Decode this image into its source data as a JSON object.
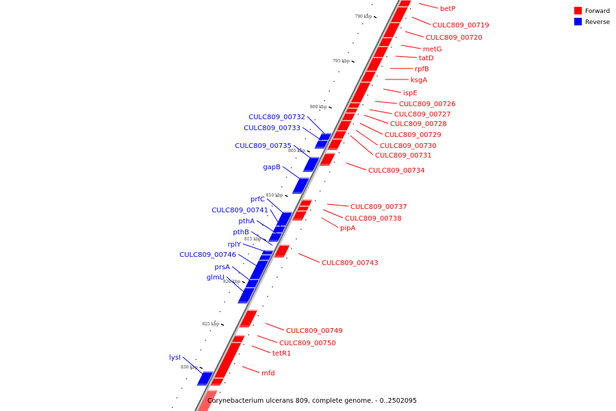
{
  "legend": {
    "forward_label": "Forward",
    "reverse_label": "Reverse",
    "forward_color": "#ff0000",
    "reverse_color": "#0000ff"
  },
  "caption": "Corynebacterium ulcerans 809, complete genome. - 0..2502095",
  "ticks": [
    "790 kbp",
    "795 kbp",
    "800 kbp",
    "805 kbp",
    "810 kbp",
    "815 kbp",
    "820 kbp",
    "825 kbp",
    "830 kbp"
  ],
  "genes_forward": [
    {
      "name": "betP"
    },
    {
      "name": "CULC809_00719"
    },
    {
      "name": "CULC809_00720"
    },
    {
      "name": "metG"
    },
    {
      "name": "tatD"
    },
    {
      "name": "rpfB"
    },
    {
      "name": "ksgA"
    },
    {
      "name": "ispE"
    },
    {
      "name": "CULC809_00726"
    },
    {
      "name": "CULC809_00727"
    },
    {
      "name": "CULC809_00728"
    },
    {
      "name": "CULC809_00729"
    },
    {
      "name": "CULC809_00730"
    },
    {
      "name": "CULC809_00731"
    },
    {
      "name": "CULC809_00734"
    },
    {
      "name": "CULC809_00737"
    },
    {
      "name": "CULC809_00738"
    },
    {
      "name": "pipA"
    },
    {
      "name": "CULC809_00743"
    },
    {
      "name": "CULC809_00749"
    },
    {
      "name": "CULC809_00750"
    },
    {
      "name": "tetR1"
    },
    {
      "name": "mfd"
    }
  ],
  "genes_reverse": [
    {
      "name": "CULC809_00732"
    },
    {
      "name": "CULC809_00733"
    },
    {
      "name": "CULC809_00735"
    },
    {
      "name": "gapB"
    },
    {
      "name": "prfC"
    },
    {
      "name": "CULC809_00741"
    },
    {
      "name": "pthA"
    },
    {
      "name": "pthB"
    },
    {
      "name": "rplY"
    },
    {
      "name": "CULC809_00746"
    },
    {
      "name": "prsA"
    },
    {
      "name": "glmU"
    },
    {
      "name": "lysI"
    }
  ]
}
